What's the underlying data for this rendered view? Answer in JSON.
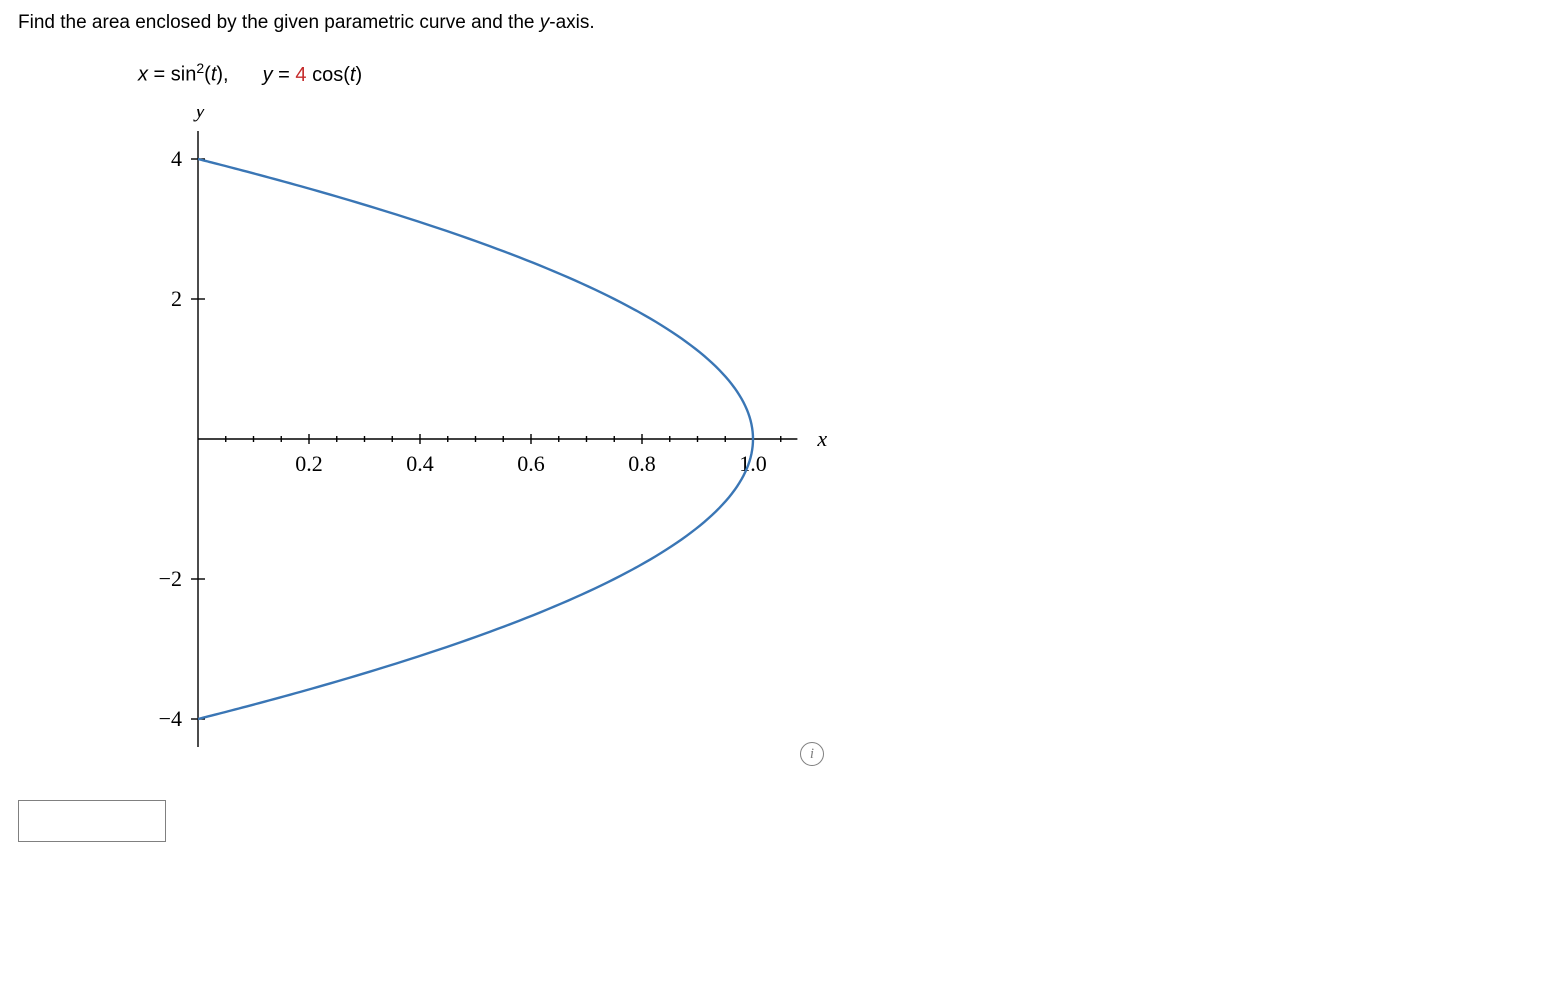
{
  "question": {
    "prefix": "Find the area enclosed by the given parametric curve and the ",
    "axis": "y",
    "suffix": "-axis."
  },
  "equations": {
    "x_lhs": "x",
    "x_eq": " = sin",
    "x_exp": "2",
    "x_arg": "(t),",
    "y_lhs": "y",
    "y_eq": " = ",
    "y_coef": "4",
    "y_tail": " cos(t)"
  },
  "chart": {
    "type": "line",
    "curve_color": "#3a76b5",
    "axis_color": "#000000",
    "background_color": "#ffffff",
    "x_axis_label": "x",
    "y_axis_label": "y",
    "x_ticks": [
      0.2,
      0.4,
      0.6,
      0.8,
      1.0
    ],
    "x_minor_step": 0.05,
    "y_ticks": [
      -4,
      -2,
      2,
      4
    ],
    "xlim": [
      0,
      1.1
    ],
    "ylim": [
      -4.4,
      4.4
    ],
    "tick_fontsize": 22,
    "label_fontsize": 22,
    "line_width": 2.4,
    "formula": {
      "x": "sin^2(t)",
      "y": "4*cos(t)",
      "t_range": [
        0,
        3.14159265
      ]
    }
  },
  "answer": {
    "value": "",
    "placeholder": ""
  },
  "info_icon_label": "i"
}
